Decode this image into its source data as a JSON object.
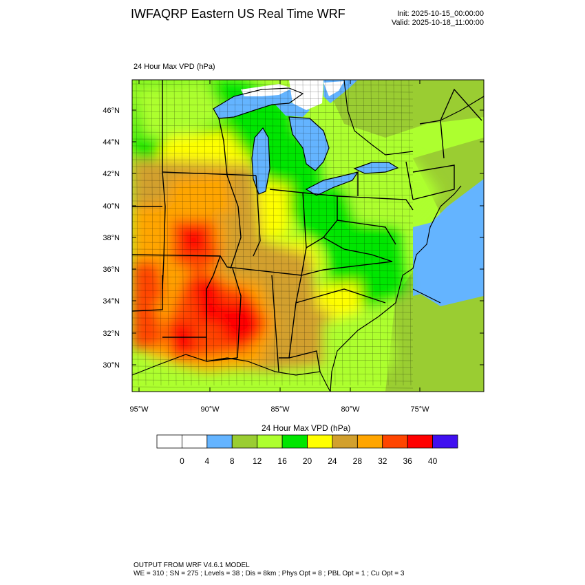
{
  "header": {
    "title": "IWFAQRP Eastern US Real Time WRF",
    "init": "Init: 2025-10-15_00:00:00",
    "valid": "Valid: 2025-10-18_11:00:00"
  },
  "map": {
    "label": "24 Hour Max VPD   (hPa)",
    "lat_labels": [
      "46°N",
      "44°N",
      "42°N",
      "40°N",
      "38°N",
      "36°N",
      "34°N",
      "32°N",
      "30°N"
    ],
    "lon_labels": [
      "95°W",
      "90°W",
      "85°W",
      "80°W",
      "75°W"
    ]
  },
  "colorbar": {
    "title": "24 Hour Max VPD  (hPa)",
    "tick_labels": [
      "0",
      "4",
      "8",
      "12",
      "16",
      "20",
      "24",
      "28",
      "32",
      "36",
      "40"
    ],
    "colors": [
      "#ffffff",
      "#ffffff",
      "#64b4ff",
      "#9acd32",
      "#adff2f",
      "#00e600",
      "#ffff00",
      "#d2a02d",
      "#ffa500",
      "#ff4500",
      "#ff0000",
      "#4010f0"
    ],
    "water_color": "#64b4ff",
    "ocean_tint": "#9acd32"
  },
  "footer": {
    "line1": "OUTPUT FROM WRF V4.6.1 MODEL",
    "line2": "WE = 310 ; SN = 275 ; Levels = 38 ; Dis = 8km ; Phys Opt = 8 ; PBL Opt = 1 ; Cu Opt = 3"
  }
}
